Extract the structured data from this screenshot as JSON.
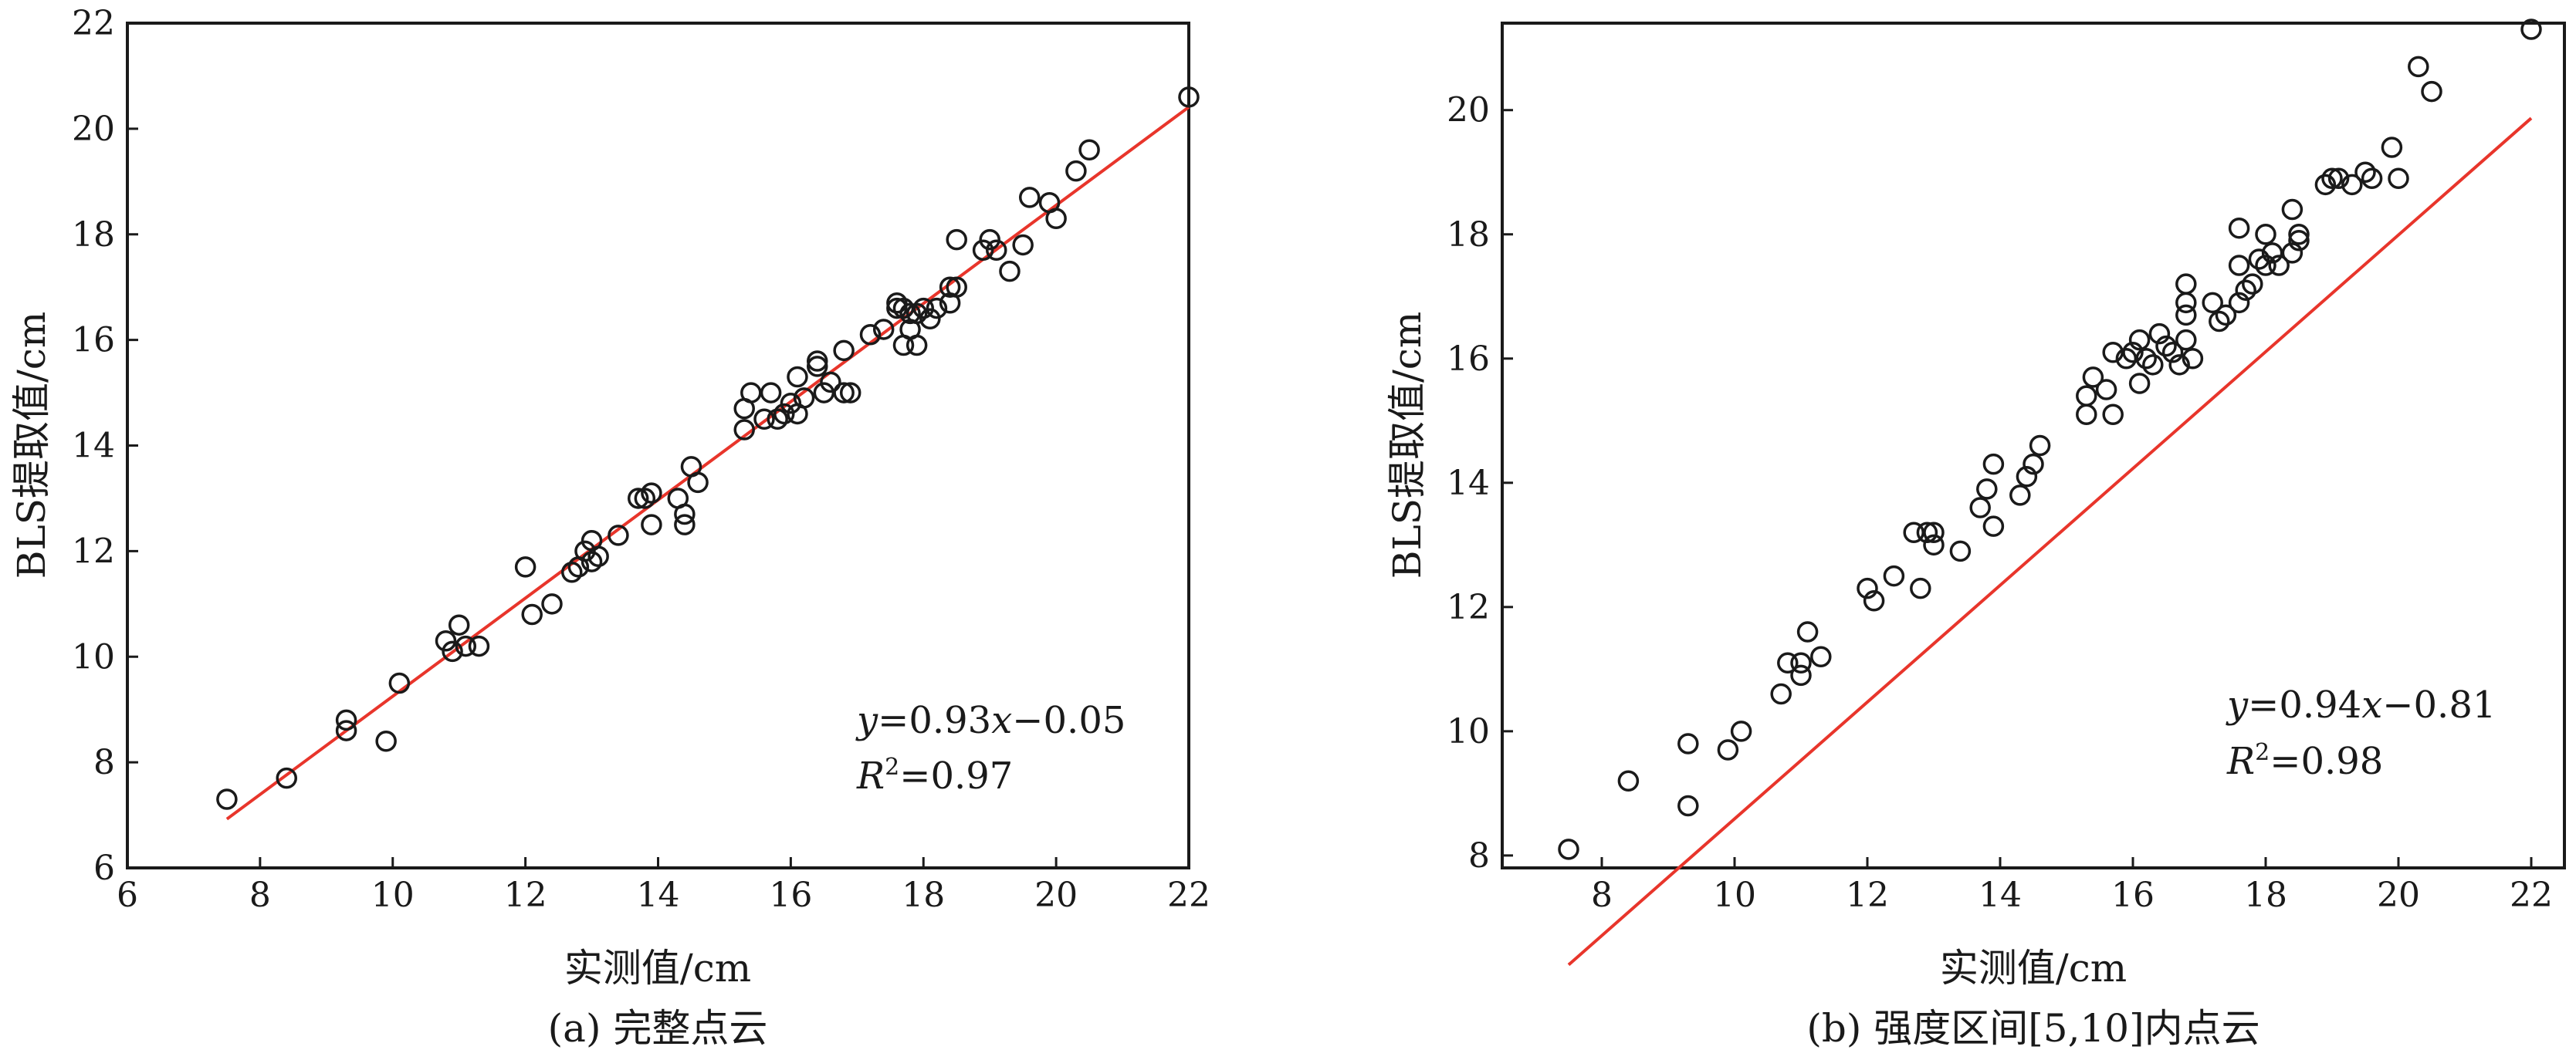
{
  "chart_data": [
    {
      "type": "scatter",
      "caption": "(a) 完整点云",
      "xlabel": "实测值/cm",
      "ylabel": "BLS提取值/cm",
      "xlim": [
        6,
        22
      ],
      "ylim": [
        6,
        22
      ],
      "xticks": [
        6,
        8,
        10,
        12,
        14,
        16,
        18,
        20,
        22
      ],
      "yticks": [
        6,
        8,
        10,
        12,
        14,
        16,
        18,
        20,
        22
      ],
      "equation": "y=0.93x−0.05",
      "equation_parts": {
        "y": "y",
        "mid": "=0.93",
        "x": "x",
        "rest": "−0.05"
      },
      "r2": {
        "r": "R",
        "sup": "2",
        "rest": "=0.97"
      },
      "fit": {
        "slope": 0.93,
        "intercept": -0.05,
        "x_range": [
          7.5,
          22
        ]
      },
      "grid": false,
      "colors": {
        "fit_line": "#e8352b",
        "points": "#1a1a1a"
      },
      "points": [
        [
          7.5,
          7.3
        ],
        [
          8.4,
          7.7
        ],
        [
          9.3,
          8.6
        ],
        [
          9.3,
          8.8
        ],
        [
          9.9,
          8.4
        ],
        [
          10.1,
          9.5
        ],
        [
          10.8,
          10.3
        ],
        [
          10.9,
          10.1
        ],
        [
          11.0,
          10.6
        ],
        [
          11.1,
          10.2
        ],
        [
          11.3,
          10.2
        ],
        [
          12.0,
          11.7
        ],
        [
          12.1,
          10.8
        ],
        [
          12.4,
          11.0
        ],
        [
          12.7,
          11.6
        ],
        [
          12.8,
          11.7
        ],
        [
          12.9,
          12.0
        ],
        [
          13.0,
          11.8
        ],
        [
          13.0,
          12.2
        ],
        [
          13.1,
          11.9
        ],
        [
          13.4,
          12.3
        ],
        [
          13.7,
          13.0
        ],
        [
          13.8,
          13.0
        ],
        [
          13.9,
          12.5
        ],
        [
          13.9,
          13.1
        ],
        [
          14.3,
          13.0
        ],
        [
          14.4,
          12.7
        ],
        [
          14.4,
          12.5
        ],
        [
          14.5,
          13.6
        ],
        [
          14.6,
          13.3
        ],
        [
          15.3,
          14.3
        ],
        [
          15.3,
          14.7
        ],
        [
          15.4,
          15.0
        ],
        [
          15.6,
          14.5
        ],
        [
          15.7,
          15.0
        ],
        [
          15.8,
          14.5
        ],
        [
          15.9,
          14.6
        ],
        [
          16.0,
          14.8
        ],
        [
          16.1,
          14.6
        ],
        [
          16.1,
          15.3
        ],
        [
          16.2,
          14.9
        ],
        [
          16.4,
          15.6
        ],
        [
          16.4,
          15.5
        ],
        [
          16.5,
          15.0
        ],
        [
          16.6,
          15.2
        ],
        [
          16.8,
          15.0
        ],
        [
          16.8,
          15.8
        ],
        [
          16.9,
          15.0
        ],
        [
          17.2,
          16.1
        ],
        [
          17.4,
          16.2
        ],
        [
          17.6,
          16.6
        ],
        [
          17.6,
          16.7
        ],
        [
          17.7,
          15.9
        ],
        [
          17.7,
          16.6
        ],
        [
          17.8,
          16.2
        ],
        [
          17.8,
          16.5
        ],
        [
          17.9,
          15.9
        ],
        [
          17.9,
          16.5
        ],
        [
          18.0,
          16.6
        ],
        [
          18.1,
          16.4
        ],
        [
          18.2,
          16.6
        ],
        [
          18.4,
          16.7
        ],
        [
          18.4,
          17.0
        ],
        [
          18.5,
          17.9
        ],
        [
          18.5,
          17.0
        ],
        [
          18.9,
          17.7
        ],
        [
          19.0,
          17.9
        ],
        [
          19.1,
          17.7
        ],
        [
          19.3,
          17.3
        ],
        [
          19.5,
          17.8
        ],
        [
          19.6,
          18.7
        ],
        [
          19.9,
          18.6
        ],
        [
          20.0,
          18.3
        ],
        [
          20.3,
          19.2
        ],
        [
          20.5,
          19.6
        ],
        [
          22.0,
          20.6
        ]
      ]
    },
    {
      "type": "scatter",
      "caption": "(b) 强度区间[5,10]内点云",
      "xlabel": "实测值/cm",
      "ylabel": "BLS提取值/cm",
      "xlim": [
        6.5,
        22.5
      ],
      "ylim": [
        7.8,
        21.4
      ],
      "xticks": [
        8,
        10,
        12,
        14,
        16,
        18,
        20,
        22
      ],
      "yticks": [
        8,
        10,
        12,
        14,
        16,
        18,
        20
      ],
      "equation": "y=0.94x−0.81",
      "equation_parts": {
        "y": "y",
        "mid": "=0.94",
        "x": "x",
        "rest": "−0.81"
      },
      "r2": {
        "r": "R",
        "sup": "2",
        "rest": "=0.98"
      },
      "fit": {
        "slope": 0.94,
        "intercept": -0.81,
        "x_range": [
          7.5,
          22
        ]
      },
      "grid": false,
      "colors": {
        "fit_line": "#e8352b",
        "points": "#1a1a1a"
      },
      "points": [
        [
          7.5,
          8.1
        ],
        [
          8.4,
          9.2
        ],
        [
          9.3,
          8.8
        ],
        [
          9.3,
          9.8
        ],
        [
          9.9,
          9.7
        ],
        [
          10.1,
          10.0
        ],
        [
          10.7,
          10.6
        ],
        [
          10.8,
          11.1
        ],
        [
          11.0,
          10.9
        ],
        [
          11.0,
          11.1
        ],
        [
          11.1,
          11.6
        ],
        [
          11.3,
          11.2
        ],
        [
          12.1,
          12.1
        ],
        [
          12.0,
          12.3
        ],
        [
          12.4,
          12.5
        ],
        [
          12.7,
          13.2
        ],
        [
          12.8,
          12.3
        ],
        [
          12.9,
          13.2
        ],
        [
          13.0,
          13.2
        ],
        [
          13.0,
          13.0
        ],
        [
          13.4,
          12.9
        ],
        [
          13.7,
          13.6
        ],
        [
          13.8,
          13.9
        ],
        [
          13.9,
          14.3
        ],
        [
          13.9,
          13.3
        ],
        [
          14.3,
          13.8
        ],
        [
          14.4,
          14.1
        ],
        [
          14.5,
          14.3
        ],
        [
          14.6,
          14.6
        ],
        [
          15.3,
          15.1
        ],
        [
          15.3,
          15.4
        ],
        [
          15.4,
          15.7
        ],
        [
          15.6,
          15.5
        ],
        [
          15.7,
          15.1
        ],
        [
          15.7,
          16.1
        ],
        [
          15.9,
          16.0
        ],
        [
          16.0,
          16.1
        ],
        [
          16.1,
          15.6
        ],
        [
          16.1,
          16.3
        ],
        [
          16.2,
          16.0
        ],
        [
          16.3,
          15.9
        ],
        [
          16.4,
          16.4
        ],
        [
          16.5,
          16.2
        ],
        [
          16.6,
          16.1
        ],
        [
          16.7,
          15.9
        ],
        [
          16.8,
          16.3
        ],
        [
          16.8,
          16.7
        ],
        [
          16.8,
          16.9
        ],
        [
          16.8,
          17.2
        ],
        [
          16.9,
          16.0
        ],
        [
          17.2,
          16.9
        ],
        [
          17.3,
          16.6
        ],
        [
          17.4,
          16.7
        ],
        [
          17.6,
          16.9
        ],
        [
          17.6,
          17.5
        ],
        [
          17.6,
          18.1
        ],
        [
          17.7,
          17.1
        ],
        [
          17.8,
          17.2
        ],
        [
          17.9,
          17.6
        ],
        [
          18.0,
          17.5
        ],
        [
          18.0,
          18.0
        ],
        [
          18.1,
          17.7
        ],
        [
          18.2,
          17.5
        ],
        [
          18.4,
          17.7
        ],
        [
          18.4,
          18.4
        ],
        [
          18.5,
          17.9
        ],
        [
          18.5,
          18.0
        ],
        [
          18.9,
          18.8
        ],
        [
          19.0,
          18.9
        ],
        [
          19.1,
          18.9
        ],
        [
          19.3,
          18.8
        ],
        [
          19.5,
          19.0
        ],
        [
          19.6,
          18.9
        ],
        [
          19.9,
          19.4
        ],
        [
          20.0,
          18.9
        ],
        [
          20.3,
          20.7
        ],
        [
          20.5,
          20.3
        ],
        [
          22.0,
          21.3
        ]
      ]
    }
  ]
}
